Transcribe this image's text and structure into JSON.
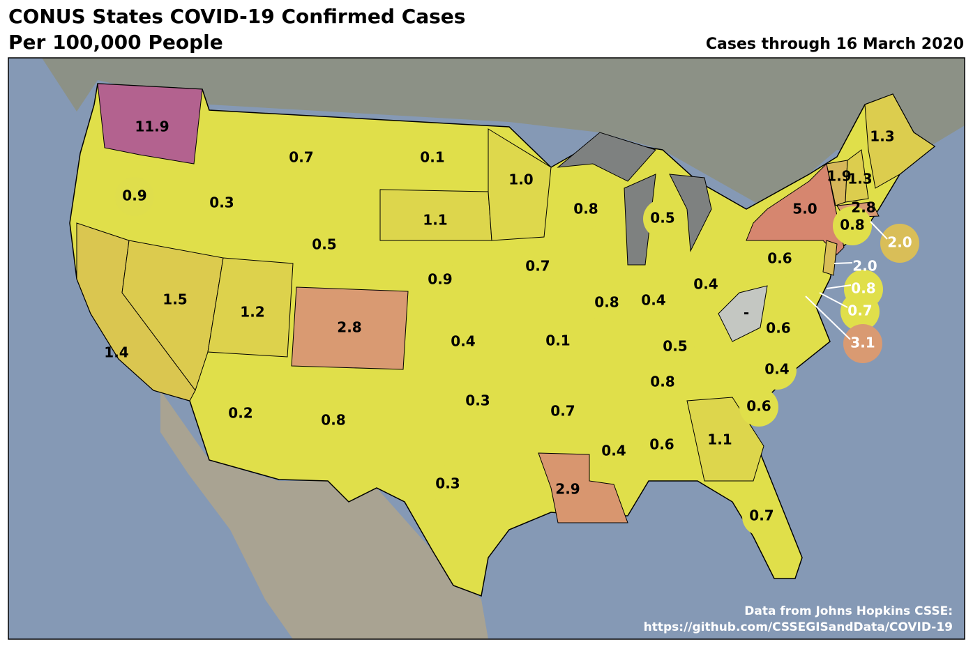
{
  "title": [
    "CONUS States COVID-19 Confirmed Cases",
    "Per 100,000 People"
  ],
  "subtitle": "Cases through 16 March 2020",
  "credit": [
    "Data from Johns Hopkins CSSE:",
    "https://github.com/CSSEGISandData/COVID-19"
  ],
  "states": [
    {
      "label": "11.9",
      "color": "#b3628f"
    },
    {
      "label": "0.9",
      "color": "#dfde4c"
    },
    {
      "label": "1.4",
      "color": "#dac650"
    },
    {
      "label": "1.5",
      "color": "#dccb4e"
    },
    {
      "label": "0.3",
      "color": "#e0df4a"
    },
    {
      "label": "0.7",
      "color": "#e0df4a"
    },
    {
      "label": "0.5",
      "color": "#e0df4a"
    },
    {
      "label": "1.2",
      "color": "#ddd24c"
    },
    {
      "label": "2.8",
      "color": "#d99a72"
    },
    {
      "label": "0.2",
      "color": "#e0df4a"
    },
    {
      "label": "0.8",
      "color": "#e0df4a"
    },
    {
      "label": "0.1",
      "color": "#e0df4a"
    },
    {
      "label": "1.1",
      "color": "#ddd64c"
    },
    {
      "label": "0.9",
      "color": "#e0df4a"
    },
    {
      "label": "0.4",
      "color": "#e0df4a"
    },
    {
      "label": "0.3",
      "color": "#e0df4a"
    },
    {
      "label": "0.3",
      "color": "#e0df4a"
    },
    {
      "label": "1.0",
      "color": "#ded84c"
    },
    {
      "label": "0.7",
      "color": "#e0df4a"
    },
    {
      "label": "0.1",
      "color": "#e0df4a"
    },
    {
      "label": "0.7",
      "color": "#e0df4a"
    },
    {
      "label": "2.9",
      "color": "#d8966f"
    },
    {
      "label": "0.8",
      "color": "#e0df4a"
    },
    {
      "label": "0.8",
      "color": "#e0df4a"
    },
    {
      "label": "0.5",
      "color": "#e0df4a"
    },
    {
      "label": "0.4",
      "color": "#e0df4a"
    },
    {
      "label": "0.4",
      "color": "#e0df4a"
    },
    {
      "label": "0.5",
      "color": "#e0df4a"
    },
    {
      "label": "0.8",
      "color": "#e0df4a"
    },
    {
      "label": "0.4",
      "color": "#e0df4a"
    },
    {
      "label": "0.6",
      "color": "#e0df4a"
    },
    {
      "label": "1.1",
      "color": "#ddd64c"
    },
    {
      "label": "0.7",
      "color": "#e0df4a"
    },
    {
      "label": "0.6",
      "color": "#e0df4a"
    },
    {
      "label": "0.4",
      "color": "#e0df4a"
    },
    {
      "label": "0.6",
      "color": "#e0df4a"
    },
    {
      "label": "-",
      "color": "#c4c7c2"
    },
    {
      "label": "0.6",
      "color": "#e0df4a"
    },
    {
      "label": "5.0",
      "color": "#d6866f"
    },
    {
      "label": "1.9",
      "color": "#d7b85a"
    },
    {
      "label": "1.3",
      "color": "#dccd4e"
    },
    {
      "label": "1.3",
      "color": "#dccd4e"
    },
    {
      "label": "2.8",
      "color": "#d99a72"
    },
    {
      "label": "0.8",
      "color": "#e0df4a"
    },
    {
      "label": "2.0",
      "color": "#d9be58"
    },
    {
      "label": "2.0",
      "color": "#d9be58"
    },
    {
      "label": "0.8",
      "color": "#e0df4a"
    },
    {
      "label": "0.7",
      "color": "#e0df4a"
    },
    {
      "label": "3.1",
      "color": "#d99a72"
    }
  ]
}
